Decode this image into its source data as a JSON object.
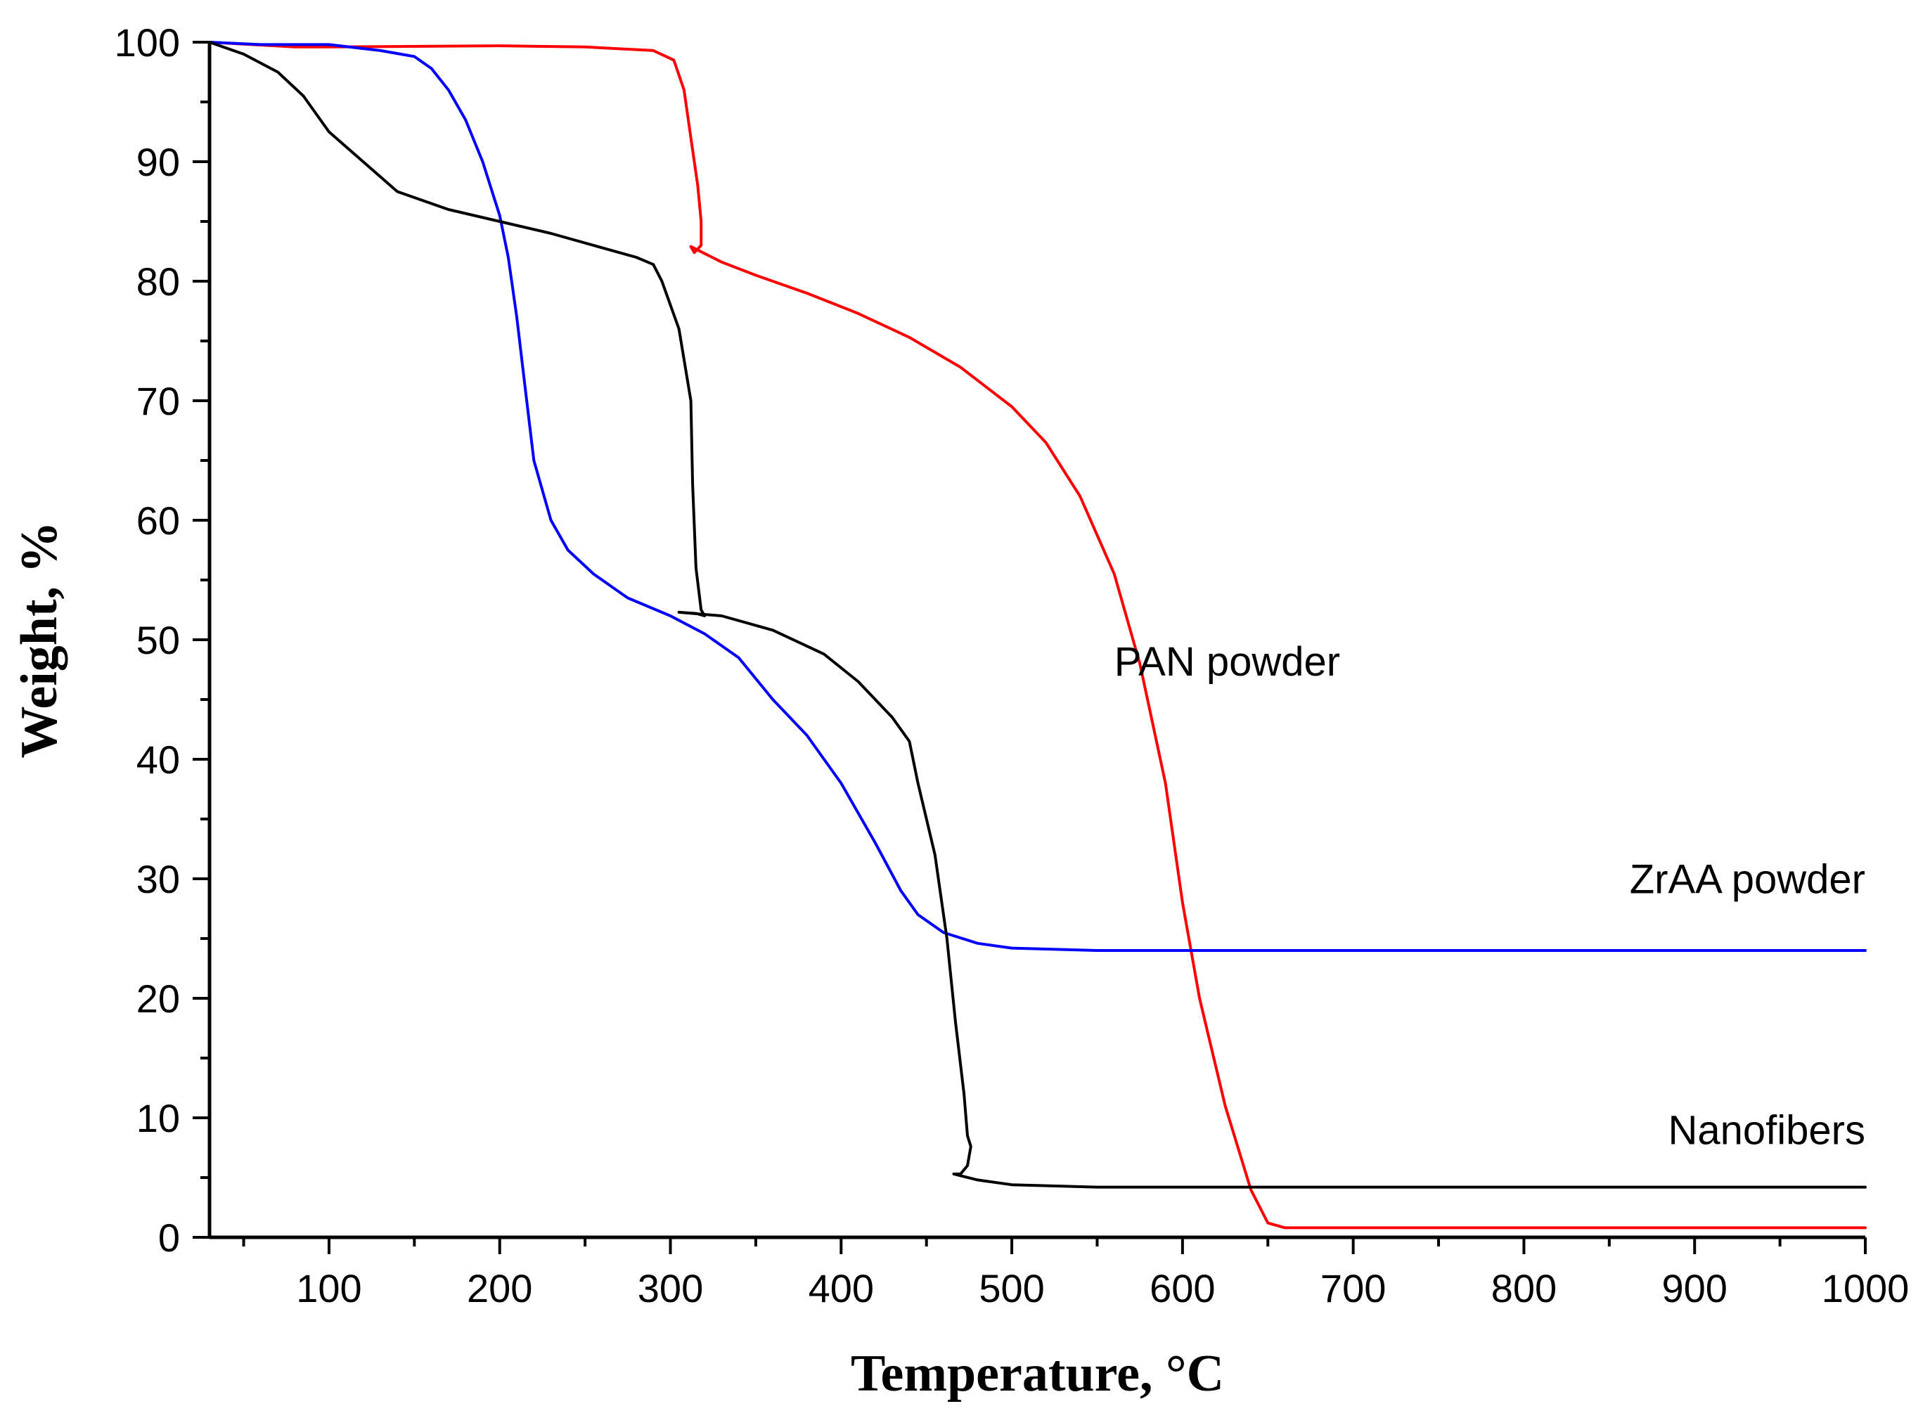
{
  "chart_data": {
    "type": "line",
    "title": "",
    "xlabel": "Temperature, °C",
    "ylabel": "Weight, %",
    "xlim": [
      30,
      1000
    ],
    "ylim": [
      0,
      100
    ],
    "x_major_ticks": [
      100,
      200,
      300,
      400,
      500,
      600,
      700,
      800,
      900,
      1000
    ],
    "x_minor_ticks": [
      50,
      150,
      250,
      350,
      450,
      550,
      650,
      750,
      850,
      950
    ],
    "y_major_ticks": [
      0,
      10,
      20,
      30,
      40,
      50,
      60,
      70,
      80,
      90,
      100
    ],
    "y_minor_ticks": [
      5,
      15,
      25,
      35,
      45,
      55,
      65,
      75,
      85,
      95
    ],
    "grid": false,
    "series": [
      {
        "name": "PAN powder",
        "color": "#ff0000",
        "label_at": [
          560,
          47
        ],
        "points": [
          [
            30,
            100
          ],
          [
            80,
            99.6
          ],
          [
            100,
            99.6
          ],
          [
            200,
            99.7
          ],
          [
            250,
            99.6
          ],
          [
            290,
            99.3
          ],
          [
            302,
            98.5
          ],
          [
            308,
            96
          ],
          [
            312,
            92
          ],
          [
            316,
            88
          ],
          [
            318,
            85
          ],
          [
            318,
            83
          ],
          [
            314,
            82.4
          ],
          [
            312,
            82.9
          ],
          [
            330,
            81.6
          ],
          [
            350,
            80.5
          ],
          [
            380,
            79
          ],
          [
            410,
            77.3
          ],
          [
            440,
            75.3
          ],
          [
            470,
            72.8
          ],
          [
            500,
            69.5
          ],
          [
            520,
            66.5
          ],
          [
            540,
            62
          ],
          [
            560,
            55.5
          ],
          [
            575,
            48
          ],
          [
            590,
            38
          ],
          [
            600,
            28
          ],
          [
            610,
            20
          ],
          [
            625,
            11
          ],
          [
            640,
            4
          ],
          [
            650,
            1.2
          ],
          [
            660,
            0.8
          ],
          [
            700,
            0.8
          ],
          [
            800,
            0.8
          ],
          [
            900,
            0.8
          ],
          [
            1000,
            0.8
          ]
        ]
      },
      {
        "name": "ZrAA powder",
        "color": "#0000ff",
        "label_at": [
          812,
          28.8
        ],
        "points": [
          [
            30,
            100
          ],
          [
            60,
            99.8
          ],
          [
            100,
            99.8
          ],
          [
            130,
            99.3
          ],
          [
            150,
            98.8
          ],
          [
            160,
            97.8
          ],
          [
            170,
            96
          ],
          [
            180,
            93.5
          ],
          [
            190,
            90
          ],
          [
            200,
            85.5
          ],
          [
            205,
            82
          ],
          [
            210,
            77
          ],
          [
            215,
            71
          ],
          [
            220,
            65
          ],
          [
            230,
            60
          ],
          [
            240,
            57.5
          ],
          [
            255,
            55.5
          ],
          [
            275,
            53.5
          ],
          [
            300,
            52
          ],
          [
            320,
            50.5
          ],
          [
            340,
            48.5
          ],
          [
            360,
            45
          ],
          [
            380,
            42
          ],
          [
            400,
            38
          ],
          [
            420,
            33
          ],
          [
            435,
            29
          ],
          [
            445,
            27
          ],
          [
            460,
            25.5
          ],
          [
            480,
            24.6
          ],
          [
            500,
            24.2
          ],
          [
            550,
            24
          ],
          [
            600,
            24
          ],
          [
            700,
            24
          ],
          [
            800,
            24
          ],
          [
            900,
            24
          ],
          [
            1000,
            24
          ]
        ]
      },
      {
        "name": "Nanofibers",
        "color": "#000000",
        "label_at": [
          844,
          7.8
        ],
        "points": [
          [
            30,
            100
          ],
          [
            50,
            99
          ],
          [
            70,
            97.5
          ],
          [
            85,
            95.5
          ],
          [
            100,
            92.5
          ],
          [
            120,
            90
          ],
          [
            140,
            87.5
          ],
          [
            150,
            87
          ],
          [
            170,
            86
          ],
          [
            200,
            85
          ],
          [
            230,
            84
          ],
          [
            260,
            82.8
          ],
          [
            280,
            82
          ],
          [
            290,
            81.4
          ],
          [
            295,
            80
          ],
          [
            305,
            76
          ],
          [
            312,
            70
          ],
          [
            313,
            63
          ],
          [
            315,
            56
          ],
          [
            318,
            52.5
          ],
          [
            320,
            52
          ],
          [
            315,
            52.2
          ],
          [
            305,
            52.3
          ],
          [
            330,
            52
          ],
          [
            360,
            50.8
          ],
          [
            390,
            48.8
          ],
          [
            410,
            46.5
          ],
          [
            430,
            43.5
          ],
          [
            440,
            41.5
          ],
          [
            445,
            38
          ],
          [
            455,
            32
          ],
          [
            462,
            25
          ],
          [
            467,
            18
          ],
          [
            472,
            12
          ],
          [
            474,
            8.5
          ],
          [
            476,
            7.6
          ],
          [
            474,
            6
          ],
          [
            470,
            5.3
          ],
          [
            466,
            5.3
          ],
          [
            480,
            4.8
          ],
          [
            500,
            4.4
          ],
          [
            550,
            4.2
          ],
          [
            600,
            4.2
          ],
          [
            700,
            4.2
          ],
          [
            800,
            4.2
          ],
          [
            900,
            4.2
          ],
          [
            1000,
            4.2
          ]
        ]
      }
    ]
  }
}
